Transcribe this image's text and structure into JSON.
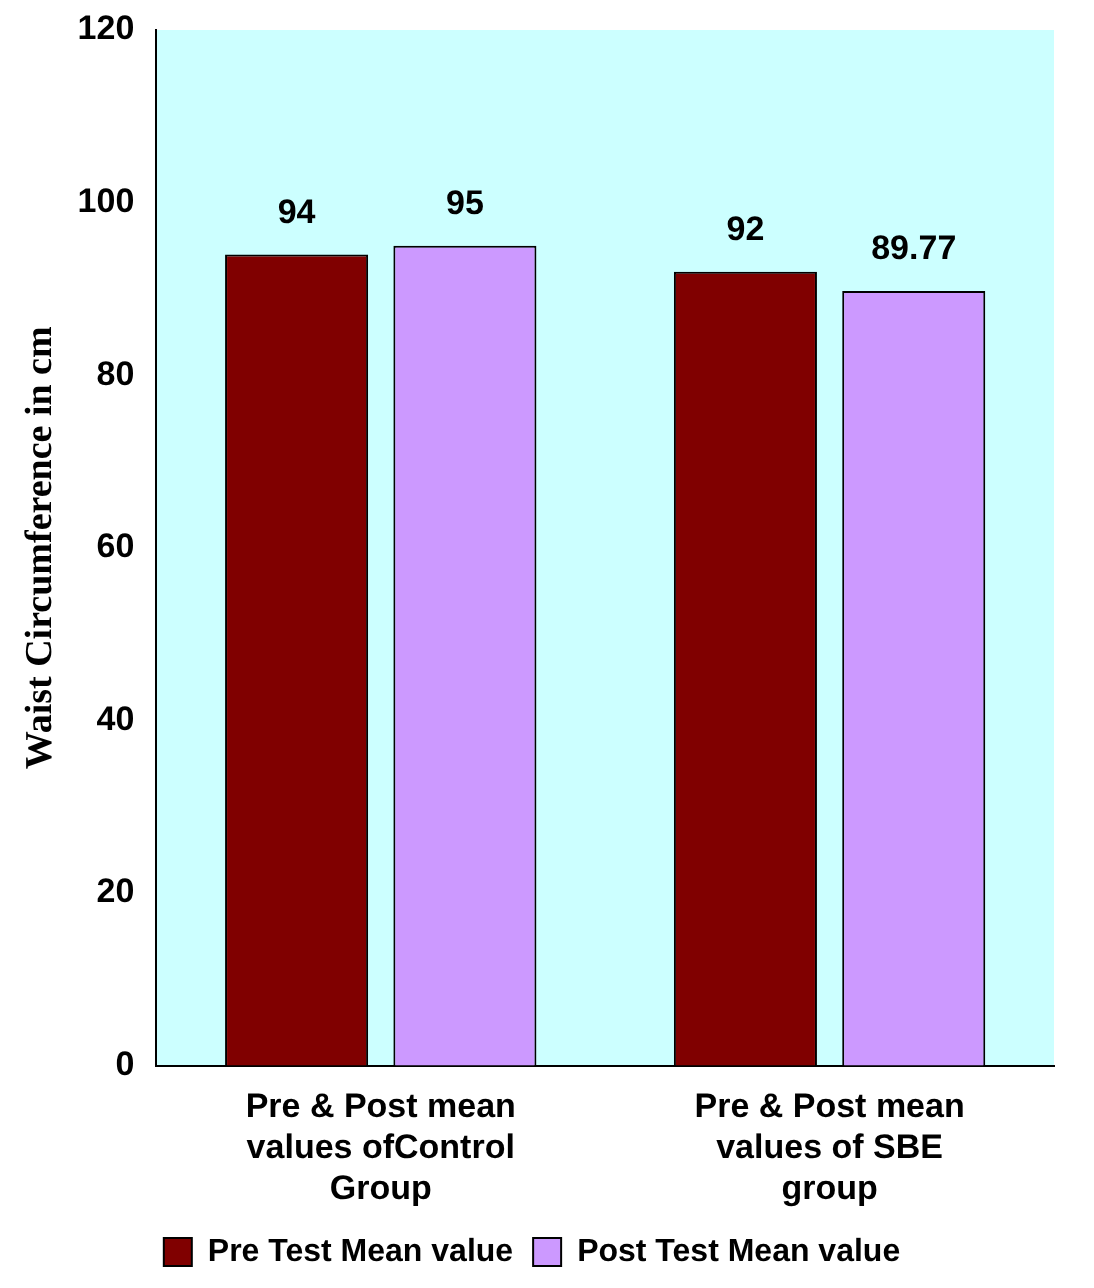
{
  "chart_data": {
    "type": "bar",
    "ylabel": "Waist Circumference in cm",
    "categories": [
      "Pre & Post mean values ofControl Group",
      "Pre & Post mean values of SBE group"
    ],
    "series": [
      {
        "name": "Pre Test Mean value",
        "color": "#800000",
        "values": [
          94,
          92
        ]
      },
      {
        "name": "Post Test Mean value",
        "color": "#cc99ff",
        "values": [
          95,
          89.77
        ]
      }
    ],
    "ylim": [
      0,
      120
    ],
    "yticks": [
      0,
      20,
      40,
      60,
      80,
      100,
      120
    ],
    "grid": false,
    "legend": "bottom",
    "data_labels": true
  }
}
